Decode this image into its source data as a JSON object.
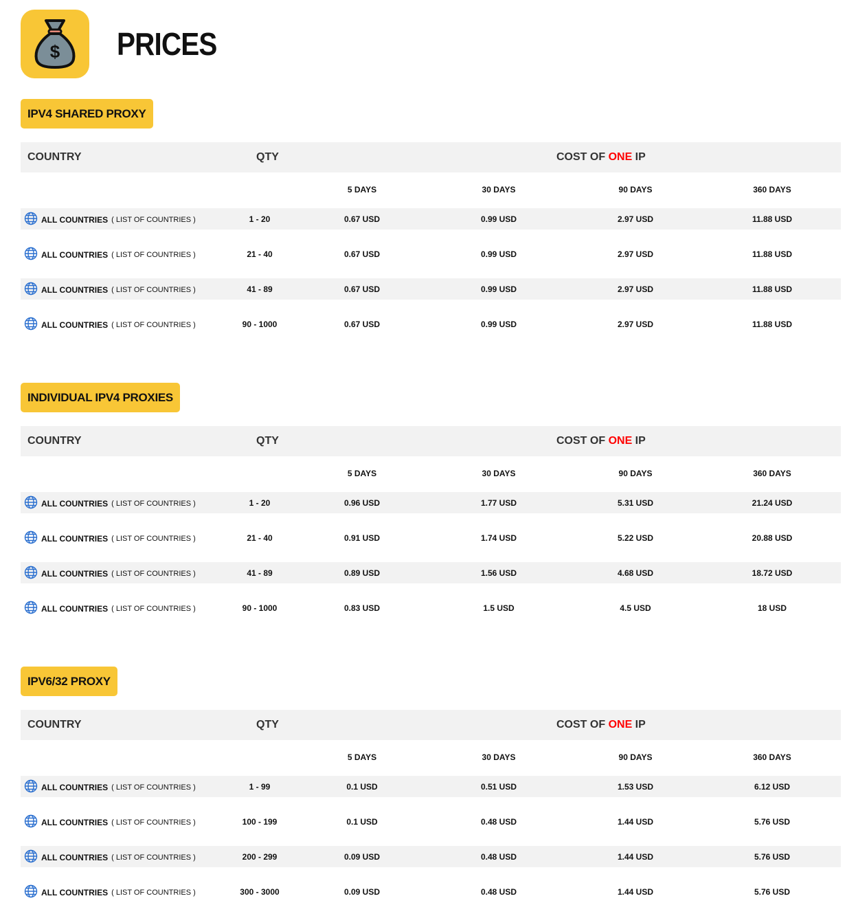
{
  "header": {
    "title": "PRICES",
    "logo_icon": "money-bag-icon"
  },
  "labels": {
    "country": "COUNTRY",
    "qty": "QTY",
    "cost_pre": "COST OF ",
    "cost_one": "ONE",
    "cost_post": " IP",
    "periods": [
      "5 DAYS",
      "30 DAYS",
      "90 DAYS",
      "360 DAYS"
    ],
    "all_countries": "ALL COUNTRIES",
    "list_link": "( LIST OF COUNTRIES )"
  },
  "colors": {
    "accent": "#f8c636",
    "highlight": "#ff0000",
    "row_bg": "#f2f2f2"
  },
  "sections": [
    {
      "title": "IPV4 SHARED PROXY",
      "rows": [
        {
          "qty": "1 - 20",
          "p": [
            "0.67 USD",
            "0.99 USD",
            "2.97 USD",
            "11.88 USD"
          ]
        },
        {
          "qty": "21 - 40",
          "p": [
            "0.67 USD",
            "0.99 USD",
            "2.97 USD",
            "11.88 USD"
          ]
        },
        {
          "qty": "41 - 89",
          "p": [
            "0.67 USD",
            "0.99 USD",
            "2.97 USD",
            "11.88 USD"
          ]
        },
        {
          "qty": "90 - 1000",
          "p": [
            "0.67 USD",
            "0.99 USD",
            "2.97 USD",
            "11.88 USD"
          ]
        }
      ]
    },
    {
      "title": "INDIVIDUAL IPV4 PROXIES",
      "rows": [
        {
          "qty": "1 - 20",
          "p": [
            "0.96 USD",
            "1.77 USD",
            "5.31 USD",
            "21.24 USD"
          ]
        },
        {
          "qty": "21 - 40",
          "p": [
            "0.91 USD",
            "1.74 USD",
            "5.22 USD",
            "20.88 USD"
          ]
        },
        {
          "qty": "41 - 89",
          "p": [
            "0.89 USD",
            "1.56 USD",
            "4.68 USD",
            "18.72 USD"
          ]
        },
        {
          "qty": "90 - 1000",
          "p": [
            "0.83 USD",
            "1.5 USD",
            "4.5 USD",
            "18 USD"
          ]
        }
      ]
    },
    {
      "title": "IPV6/32 PROXY",
      "rows": [
        {
          "qty": "1 - 99",
          "p": [
            "0.1 USD",
            "0.51 USD",
            "1.53 USD",
            "6.12 USD"
          ]
        },
        {
          "qty": "100 - 199",
          "p": [
            "0.1 USD",
            "0.48 USD",
            "1.44 USD",
            "5.76 USD"
          ]
        },
        {
          "qty": "200 - 299",
          "p": [
            "0.09 USD",
            "0.48 USD",
            "1.44 USD",
            "5.76 USD"
          ]
        },
        {
          "qty": "300 - 3000",
          "p": [
            "0.09 USD",
            "0.48 USD",
            "1.44 USD",
            "5.76 USD"
          ]
        }
      ]
    }
  ]
}
